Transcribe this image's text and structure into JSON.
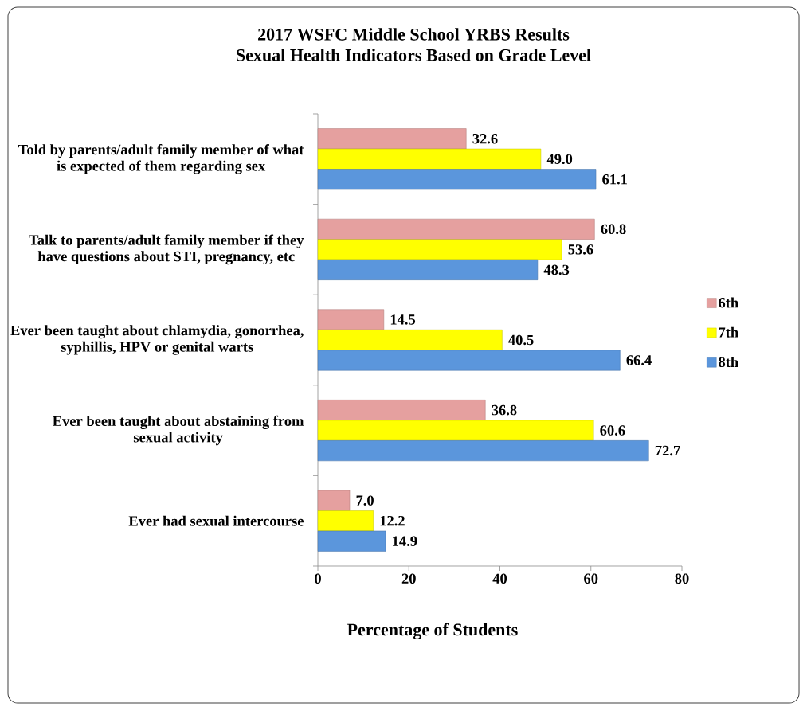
{
  "chart_data": {
    "type": "bar",
    "orientation": "horizontal",
    "title": "2017 WSFC Middle School YRBS Results",
    "subtitle": "Sexual Health Indicators Based on Grade Level",
    "xlabel": "Percentage of Students",
    "categories": [
      "Told by parents/adult family member of what is expected of them regarding sex",
      "Talk to parents/adult family member if they have questions about STI, pregnancy, etc",
      "Ever been taught about chlamydia, gonorrhea, syphillis, HPV or genital warts",
      "Ever been taught about abstaining from sexual activity",
      "Ever had sexual intercourse"
    ],
    "series": [
      {
        "name": "6th",
        "color": "#e5a09f",
        "values": [
          32.6,
          60.8,
          14.5,
          36.8,
          7.0
        ],
        "value_labels": [
          "32.6",
          "60.8",
          "14.5",
          "36.8",
          "7.0"
        ]
      },
      {
        "name": "7th",
        "color": "#ffff00",
        "values": [
          49.0,
          53.6,
          40.5,
          60.6,
          12.2
        ],
        "value_labels": [
          "49.0",
          "53.6",
          "40.5",
          "60.6",
          "12.2"
        ]
      },
      {
        "name": "8th",
        "color": "#5b96dc",
        "values": [
          61.1,
          48.3,
          66.4,
          72.7,
          14.9
        ],
        "value_labels": [
          "61.1",
          "48.3",
          "66.4",
          "72.7",
          "14.9"
        ]
      }
    ],
    "xlim": [
      0,
      80
    ],
    "xticks": [
      0,
      20,
      40,
      60,
      80
    ],
    "legend": "right"
  }
}
